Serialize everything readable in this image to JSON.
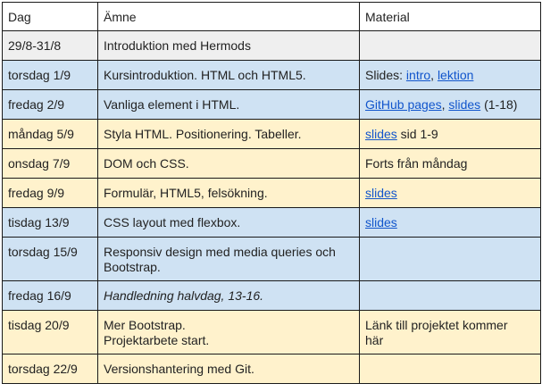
{
  "header": {
    "day": "Dag",
    "topic": "Ämne",
    "material": "Material"
  },
  "colors": {
    "header_bg": "#ffffff",
    "gray": "#efefef",
    "blue": "#cfe2f3",
    "yellow": "#fff2cc",
    "link": "#1155cc"
  },
  "rows": [
    {
      "day": "29/8-31/8",
      "topic": "Introduktion med Hermods",
      "bg": "gray",
      "material": []
    },
    {
      "day": "torsdag 1/9",
      "topic": "Kursintroduktion. HTML och HTML5.",
      "bg": "blue",
      "material": [
        {
          "text": "Slides: ",
          "link": false
        },
        {
          "text": "intro",
          "link": true
        },
        {
          "text": ", ",
          "link": false
        },
        {
          "text": "lektion",
          "link": true
        }
      ]
    },
    {
      "day": "fredag 2/9",
      "topic": "Vanliga element i HTML.",
      "bg": "blue",
      "material": [
        {
          "text": "GitHub pages",
          "link": true
        },
        {
          "text": ", ",
          "link": false
        },
        {
          "text": "slides",
          "link": true
        },
        {
          "text": " (1-18)",
          "link": false
        }
      ]
    },
    {
      "day": "måndag 5/9",
      "topic": "Styla HTML. Positionering. Tabeller.",
      "bg": "yellow",
      "material": [
        {
          "text": "slides",
          "link": true
        },
        {
          "text": " sid 1-9",
          "link": false
        }
      ]
    },
    {
      "day": "onsdag 7/9",
      "topic": "DOM och CSS.",
      "bg": "yellow",
      "material": [
        {
          "text": "Forts från måndag",
          "link": false
        }
      ]
    },
    {
      "day": "fredag 9/9",
      "topic": "Formulär, HTML5, felsökning.",
      "bg": "yellow",
      "material": [
        {
          "text": "slides",
          "link": true
        }
      ]
    },
    {
      "day": "tisdag 13/9",
      "topic": "CSS layout med flexbox.",
      "bg": "blue",
      "material": [
        {
          "text": "slides",
          "link": true
        }
      ]
    },
    {
      "day": "torsdag 15/9",
      "topic_lines": [
        "Responsiv design med media queries och",
        "Bootstrap."
      ],
      "bg": "blue",
      "material": []
    },
    {
      "day": "fredag 16/9",
      "topic": "Handledning halvdag, 13-16.",
      "topic_italic": true,
      "bg": "blue",
      "material": []
    },
    {
      "day": "tisdag 20/9",
      "topic_lines": [
        "Mer Bootstrap.",
        "Projektarbete start."
      ],
      "bg": "yellow",
      "material_lines": [
        "Länk till projektet kommer",
        "här"
      ],
      "material": []
    },
    {
      "day": "torsdag 22/9",
      "topic": "Versionshantering med Git.",
      "bg": "yellow",
      "material": []
    }
  ]
}
